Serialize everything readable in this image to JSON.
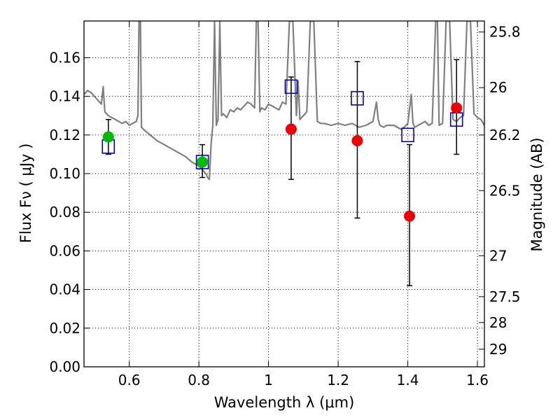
{
  "chart_data": {
    "type": "scatter",
    "title": "",
    "xlabel": "Wavelength  λ (μm)",
    "ylabel": "Flux  Fν  ( μJy )",
    "y2label": "Magnitude (AB)",
    "xlim": [
      0.47,
      1.62
    ],
    "ylim": [
      0.0,
      0.179
    ],
    "grid": true,
    "legend": "none",
    "x_ticks": [
      0.6,
      0.8,
      1.0,
      1.2,
      1.4,
      1.6
    ],
    "x_tick_labels": [
      "0.6",
      "0.8",
      "1",
      "1.2",
      "1.4",
      "1.6"
    ],
    "y_ticks": [
      0.0,
      0.02,
      0.04,
      0.06,
      0.08,
      0.1,
      0.12,
      0.14,
      0.16
    ],
    "y_tick_labels": [
      "0.00",
      "0.02",
      "0.04",
      "0.06",
      "0.08",
      "0.10",
      "0.12",
      "0.14",
      "0.16"
    ],
    "y2_ticks": [
      {
        "label": "25.8",
        "flux": 0.1733
      },
      {
        "label": "26",
        "flux": 0.1445
      },
      {
        "label": "26.2",
        "flux": 0.12
      },
      {
        "label": "26.5",
        "flux": 0.0912
      },
      {
        "label": "27",
        "flux": 0.0575
      },
      {
        "label": "27.5",
        "flux": 0.0363
      },
      {
        "label": "28",
        "flux": 0.0229
      },
      {
        "label": "29",
        "flux": 0.0091
      }
    ],
    "colors": {
      "model": "#808080",
      "model_points": "#0000cc",
      "detections_green": "#00bb00",
      "detections_red": "#ee0000",
      "errorbar": "#000000"
    },
    "series": [
      {
        "role": "model-spectrum",
        "x": [
          0.47,
          0.48,
          0.49,
          0.5,
          0.51,
          0.52,
          0.525,
          0.53,
          0.54,
          0.55,
          0.56,
          0.57,
          0.58,
          0.59,
          0.6,
          0.61,
          0.62,
          0.625,
          0.628,
          0.632,
          0.635,
          0.64,
          0.66,
          0.68,
          0.7,
          0.72,
          0.74,
          0.76,
          0.78,
          0.8,
          0.81,
          0.82,
          0.825,
          0.83,
          0.835,
          0.84,
          0.845,
          0.85,
          0.855,
          0.86,
          0.865,
          0.87,
          0.88,
          0.89,
          0.9,
          0.91,
          0.92,
          0.93,
          0.94,
          0.95,
          0.96,
          0.965,
          0.97,
          0.975,
          0.98,
          0.99,
          1.0,
          1.01,
          1.02,
          1.03,
          1.04,
          1.05,
          1.06,
          1.07,
          1.08,
          1.085,
          1.09,
          1.1,
          1.11,
          1.12,
          1.13,
          1.14,
          1.15,
          1.16,
          1.18,
          1.2,
          1.22,
          1.24,
          1.26,
          1.28,
          1.3,
          1.31,
          1.315,
          1.32,
          1.33,
          1.34,
          1.36,
          1.38,
          1.39,
          1.4,
          1.41,
          1.415,
          1.42,
          1.43,
          1.44,
          1.45,
          1.46,
          1.47,
          1.48,
          1.485,
          1.49,
          1.5,
          1.51,
          1.52,
          1.53,
          1.54,
          1.55,
          1.56,
          1.57,
          1.58,
          1.59,
          1.6,
          1.61,
          1.62
        ],
        "y": [
          0.141,
          0.143,
          0.142,
          0.14,
          0.138,
          0.136,
          0.145,
          0.132,
          0.13,
          0.129,
          0.128,
          0.127,
          0.126,
          0.127,
          0.125,
          0.126,
          0.127,
          0.13,
          0.179,
          0.179,
          0.124,
          0.123,
          0.12,
          0.117,
          0.115,
          0.113,
          0.111,
          0.109,
          0.106,
          0.104,
          0.102,
          0.1,
          0.098,
          0.097,
          0.115,
          0.125,
          0.179,
          0.125,
          0.128,
          0.179,
          0.13,
          0.131,
          0.129,
          0.133,
          0.132,
          0.134,
          0.133,
          0.135,
          0.137,
          0.136,
          0.134,
          0.179,
          0.179,
          0.132,
          0.134,
          0.133,
          0.136,
          0.135,
          0.134,
          0.133,
          0.137,
          0.136,
          0.179,
          0.179,
          0.13,
          0.148,
          0.128,
          0.13,
          0.132,
          0.179,
          0.179,
          0.127,
          0.126,
          0.126,
          0.125,
          0.126,
          0.125,
          0.126,
          0.124,
          0.125,
          0.127,
          0.137,
          0.128,
          0.125,
          0.124,
          0.125,
          0.125,
          0.123,
          0.124,
          0.126,
          0.141,
          0.126,
          0.124,
          0.125,
          0.126,
          0.127,
          0.125,
          0.126,
          0.179,
          0.179,
          0.125,
          0.126,
          0.179,
          0.179,
          0.128,
          0.127,
          0.129,
          0.13,
          0.179,
          0.179,
          0.131,
          0.129,
          0.128,
          0.125
        ]
      },
      {
        "role": "model-photometry",
        "marker": "open-square",
        "x": [
          0.54,
          0.81,
          1.065,
          1.255,
          1.4,
          1.54
        ],
        "y": [
          0.114,
          0.106,
          0.145,
          0.139,
          0.12,
          0.128
        ]
      },
      {
        "role": "detections",
        "marker": "filled-circle",
        "points": [
          {
            "x": 0.54,
            "y": 0.119,
            "yerr": [
              0.11,
              0.128
            ],
            "color": "green"
          },
          {
            "x": 0.81,
            "y": 0.106,
            "yerr": [
              0.098,
              0.115
            ],
            "color": "green"
          },
          {
            "x": 1.065,
            "y": 0.123,
            "yerr": [
              0.097,
              0.15
            ],
            "color": "red"
          },
          {
            "x": 1.255,
            "y": 0.117,
            "yerr": [
              0.077,
              0.158
            ],
            "color": "red"
          },
          {
            "x": 1.405,
            "y": 0.078,
            "yerr": [
              0.042,
              0.115
            ],
            "color": "red"
          },
          {
            "x": 1.54,
            "y": 0.134,
            "yerr": [
              0.11,
              0.159
            ],
            "color": "red"
          }
        ]
      }
    ]
  }
}
